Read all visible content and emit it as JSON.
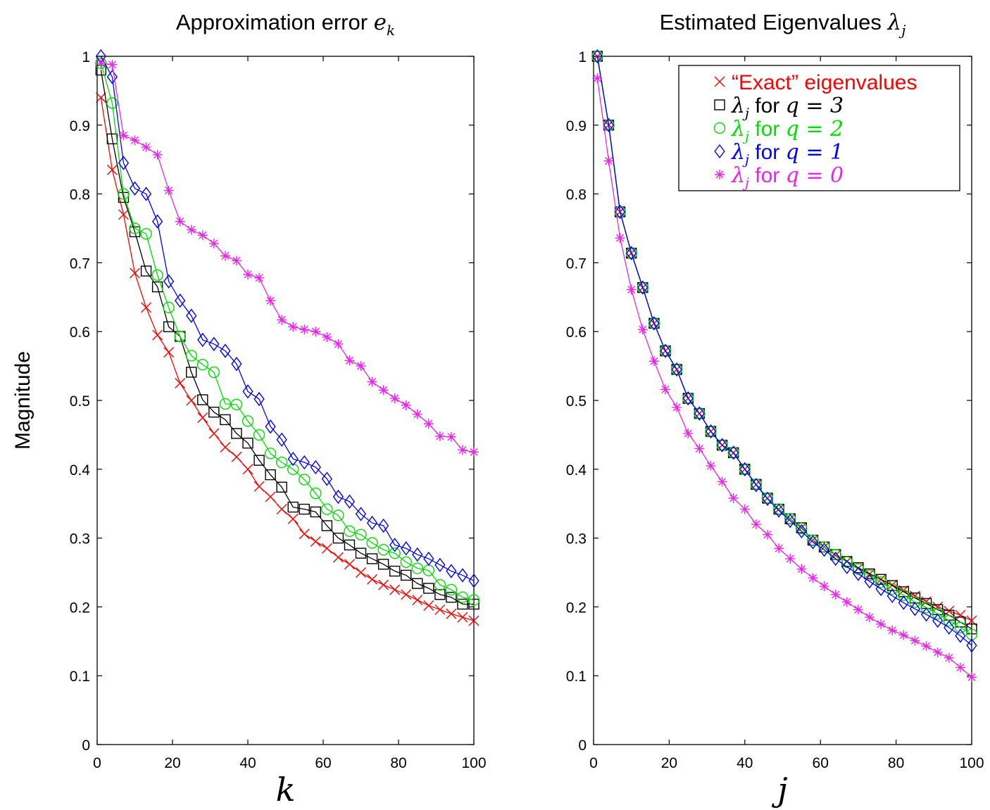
{
  "colors": {
    "exact": "#ff0000",
    "q3": "#000000",
    "q2": "#00e000",
    "q1": "#0000ff",
    "q0": "#ee22ee"
  },
  "chart_data": [
    {
      "type": "line",
      "title": "Approximation error",
      "title_math": "e",
      "title_math_sub": "k",
      "xlabel": "k",
      "ylabel": "Magnitude",
      "xlim": [
        0,
        100
      ],
      "ylim": [
        0,
        1
      ],
      "xticks": [
        "0",
        "20",
        "40",
        "60",
        "80",
        "100"
      ],
      "yticks": [
        "0",
        "0.1",
        "0.2",
        "0.3",
        "0.4",
        "0.5",
        "0.6",
        "0.7",
        "0.8",
        "0.9",
        "1"
      ],
      "grid": false,
      "series": [
        {
          "key": "exact",
          "marker": "x",
          "x": [
            1,
            4,
            7,
            10,
            13,
            16,
            19,
            22,
            25,
            28,
            31,
            34,
            37,
            40,
            43,
            46,
            49,
            52,
            55,
            58,
            61,
            64,
            67,
            70,
            73,
            76,
            79,
            82,
            85,
            88,
            91,
            94,
            97,
            100
          ],
          "y": [
            0.94,
            0.835,
            0.77,
            0.685,
            0.635,
            0.595,
            0.57,
            0.525,
            0.5,
            0.475,
            0.452,
            0.432,
            0.418,
            0.4,
            0.375,
            0.36,
            0.342,
            0.328,
            0.306,
            0.295,
            0.285,
            0.272,
            0.262,
            0.25,
            0.24,
            0.232,
            0.225,
            0.218,
            0.21,
            0.202,
            0.196,
            0.19,
            0.185,
            0.18
          ]
        },
        {
          "key": "q3",
          "marker": "square",
          "x": [
            1,
            4,
            7,
            10,
            13,
            16,
            19,
            22,
            25,
            28,
            31,
            34,
            37,
            40,
            43,
            46,
            49,
            52,
            55,
            58,
            61,
            64,
            67,
            70,
            73,
            76,
            79,
            82,
            85,
            88,
            91,
            94,
            97,
            100
          ],
          "y": [
            0.98,
            0.88,
            0.795,
            0.745,
            0.688,
            0.665,
            0.607,
            0.593,
            0.541,
            0.501,
            0.483,
            0.472,
            0.452,
            0.438,
            0.413,
            0.392,
            0.374,
            0.345,
            0.342,
            0.338,
            0.318,
            0.3,
            0.29,
            0.278,
            0.27,
            0.262,
            0.252,
            0.246,
            0.234,
            0.227,
            0.218,
            0.214,
            0.204,
            0.204
          ]
        },
        {
          "key": "q2",
          "marker": "circle",
          "x": [
            1,
            4,
            7,
            10,
            13,
            16,
            19,
            22,
            25,
            28,
            31,
            34,
            37,
            40,
            43,
            46,
            49,
            52,
            55,
            58,
            61,
            64,
            67,
            70,
            73,
            76,
            79,
            82,
            85,
            88,
            91,
            94,
            97,
            100
          ],
          "y": [
            0.99,
            0.932,
            0.8,
            0.75,
            0.742,
            0.682,
            0.635,
            0.593,
            0.565,
            0.552,
            0.541,
            0.495,
            0.494,
            0.47,
            0.45,
            0.423,
            0.41,
            0.4,
            0.385,
            0.365,
            0.342,
            0.333,
            0.31,
            0.305,
            0.293,
            0.283,
            0.278,
            0.265,
            0.256,
            0.253,
            0.232,
            0.225,
            0.214,
            0.21
          ]
        },
        {
          "key": "q1",
          "marker": "diamond",
          "x": [
            1,
            4,
            7,
            10,
            13,
            16,
            19,
            22,
            25,
            28,
            31,
            34,
            37,
            40,
            43,
            46,
            49,
            52,
            55,
            58,
            61,
            64,
            67,
            70,
            73,
            76,
            79,
            82,
            85,
            88,
            91,
            94,
            97,
            100
          ],
          "y": [
            1.0,
            0.97,
            0.845,
            0.808,
            0.8,
            0.76,
            0.673,
            0.645,
            0.623,
            0.588,
            0.582,
            0.572,
            0.553,
            0.513,
            0.502,
            0.462,
            0.443,
            0.415,
            0.41,
            0.403,
            0.386,
            0.36,
            0.353,
            0.335,
            0.322,
            0.318,
            0.29,
            0.285,
            0.276,
            0.27,
            0.261,
            0.252,
            0.246,
            0.238
          ]
        },
        {
          "key": "q0",
          "marker": "star",
          "x": [
            1,
            4,
            7,
            10,
            13,
            16,
            19,
            22,
            25,
            28,
            31,
            34,
            37,
            40,
            43,
            46,
            49,
            52,
            55,
            58,
            61,
            64,
            67,
            70,
            73,
            76,
            79,
            82,
            85,
            88,
            91,
            94,
            97,
            100
          ],
          "y": [
            0.99,
            0.988,
            0.885,
            0.878,
            0.868,
            0.857,
            0.805,
            0.76,
            0.748,
            0.74,
            0.728,
            0.71,
            0.703,
            0.683,
            0.678,
            0.645,
            0.617,
            0.607,
            0.603,
            0.6,
            0.592,
            0.582,
            0.558,
            0.55,
            0.527,
            0.515,
            0.503,
            0.493,
            0.48,
            0.466,
            0.448,
            0.447,
            0.428,
            0.425
          ]
        }
      ]
    },
    {
      "type": "line",
      "title": "Estimated Eigenvalues",
      "title_math": "λ",
      "title_math_sub": "j",
      "xlabel": "j",
      "ylabel": "",
      "xlim": [
        0,
        100
      ],
      "ylim": [
        0,
        1
      ],
      "xticks": [
        "0",
        "20",
        "40",
        "60",
        "80",
        "100"
      ],
      "yticks": [
        "0",
        "0.1",
        "0.2",
        "0.3",
        "0.4",
        "0.5",
        "0.6",
        "0.7",
        "0.8",
        "0.9",
        "1"
      ],
      "grid": false,
      "legend": {
        "placement": "top-right",
        "entries": [
          {
            "key": "exact",
            "marker": "x",
            "text": "“Exact” eigenvalues"
          },
          {
            "key": "q3",
            "marker": "square",
            "lambda": "λ",
            "sub": "j",
            "text": " for ",
            "q": "q = 3"
          },
          {
            "key": "q2",
            "marker": "circle",
            "lambda": "λ",
            "sub": "j",
            "text": " for ",
            "q": "q = 2"
          },
          {
            "key": "q1",
            "marker": "diamond",
            "lambda": "λ",
            "sub": "j",
            "text": " for ",
            "q": "q = 1"
          },
          {
            "key": "q0",
            "marker": "star",
            "lambda": "λ",
            "sub": "j",
            "text": " for ",
            "q": "q = 0"
          }
        ]
      },
      "series": [
        {
          "key": "exact",
          "marker": "x",
          "x": [
            1,
            4,
            7,
            10,
            13,
            16,
            19,
            22,
            25,
            28,
            31,
            34,
            37,
            40,
            43,
            46,
            49,
            52,
            55,
            58,
            61,
            64,
            67,
            70,
            73,
            76,
            79,
            82,
            85,
            88,
            91,
            94,
            97,
            100
          ],
          "y": [
            1.0,
            0.9,
            0.774,
            0.714,
            0.664,
            0.612,
            0.572,
            0.545,
            0.503,
            0.481,
            0.455,
            0.435,
            0.424,
            0.4,
            0.378,
            0.358,
            0.342,
            0.328,
            0.315,
            0.297,
            0.287,
            0.275,
            0.266,
            0.256,
            0.248,
            0.24,
            0.232,
            0.224,
            0.216,
            0.208,
            0.2,
            0.194,
            0.188,
            0.18
          ]
        },
        {
          "key": "q3",
          "marker": "square",
          "x": [
            1,
            4,
            7,
            10,
            13,
            16,
            19,
            22,
            25,
            28,
            31,
            34,
            37,
            40,
            43,
            46,
            49,
            52,
            55,
            58,
            61,
            64,
            67,
            70,
            73,
            76,
            79,
            82,
            85,
            88,
            91,
            94,
            97,
            100
          ],
          "y": [
            1.0,
            0.9,
            0.774,
            0.714,
            0.664,
            0.612,
            0.572,
            0.545,
            0.503,
            0.481,
            0.455,
            0.435,
            0.424,
            0.4,
            0.378,
            0.358,
            0.342,
            0.328,
            0.315,
            0.297,
            0.287,
            0.276,
            0.266,
            0.257,
            0.248,
            0.24,
            0.231,
            0.222,
            0.213,
            0.205,
            0.196,
            0.188,
            0.178,
            0.168
          ]
        },
        {
          "key": "q2",
          "marker": "circle",
          "x": [
            1,
            4,
            7,
            10,
            13,
            16,
            19,
            22,
            25,
            28,
            31,
            34,
            37,
            40,
            43,
            46,
            49,
            52,
            55,
            58,
            61,
            64,
            67,
            70,
            73,
            76,
            79,
            82,
            85,
            88,
            91,
            94,
            97,
            100
          ],
          "y": [
            1.0,
            0.9,
            0.774,
            0.714,
            0.664,
            0.612,
            0.572,
            0.545,
            0.503,
            0.481,
            0.455,
            0.435,
            0.424,
            0.4,
            0.378,
            0.358,
            0.342,
            0.328,
            0.314,
            0.297,
            0.287,
            0.276,
            0.265,
            0.255,
            0.246,
            0.236,
            0.226,
            0.217,
            0.207,
            0.199,
            0.19,
            0.18,
            0.17,
            0.16
          ]
        },
        {
          "key": "q1",
          "marker": "diamond",
          "x": [
            1,
            4,
            7,
            10,
            13,
            16,
            19,
            22,
            25,
            28,
            31,
            34,
            37,
            40,
            43,
            46,
            49,
            52,
            55,
            58,
            61,
            64,
            67,
            70,
            73,
            76,
            79,
            82,
            85,
            88,
            91,
            94,
            97,
            100
          ],
          "y": [
            1.0,
            0.9,
            0.774,
            0.714,
            0.664,
            0.612,
            0.572,
            0.545,
            0.503,
            0.481,
            0.455,
            0.435,
            0.424,
            0.4,
            0.377,
            0.357,
            0.34,
            0.325,
            0.31,
            0.294,
            0.283,
            0.27,
            0.258,
            0.248,
            0.237,
            0.226,
            0.216,
            0.206,
            0.197,
            0.189,
            0.18,
            0.17,
            0.158,
            0.144
          ]
        },
        {
          "key": "q0",
          "marker": "star",
          "x": [
            1,
            4,
            7,
            10,
            13,
            16,
            19,
            22,
            25,
            28,
            31,
            34,
            37,
            40,
            43,
            46,
            49,
            52,
            55,
            58,
            61,
            64,
            67,
            70,
            73,
            76,
            79,
            82,
            85,
            88,
            91,
            94,
            97,
            100
          ],
          "y": [
            0.968,
            0.848,
            0.736,
            0.661,
            0.603,
            0.557,
            0.516,
            0.49,
            0.452,
            0.43,
            0.405,
            0.382,
            0.358,
            0.342,
            0.32,
            0.305,
            0.285,
            0.27,
            0.255,
            0.242,
            0.23,
            0.218,
            0.207,
            0.196,
            0.185,
            0.175,
            0.166,
            0.159,
            0.151,
            0.143,
            0.134,
            0.126,
            0.112,
            0.098
          ]
        }
      ]
    }
  ]
}
